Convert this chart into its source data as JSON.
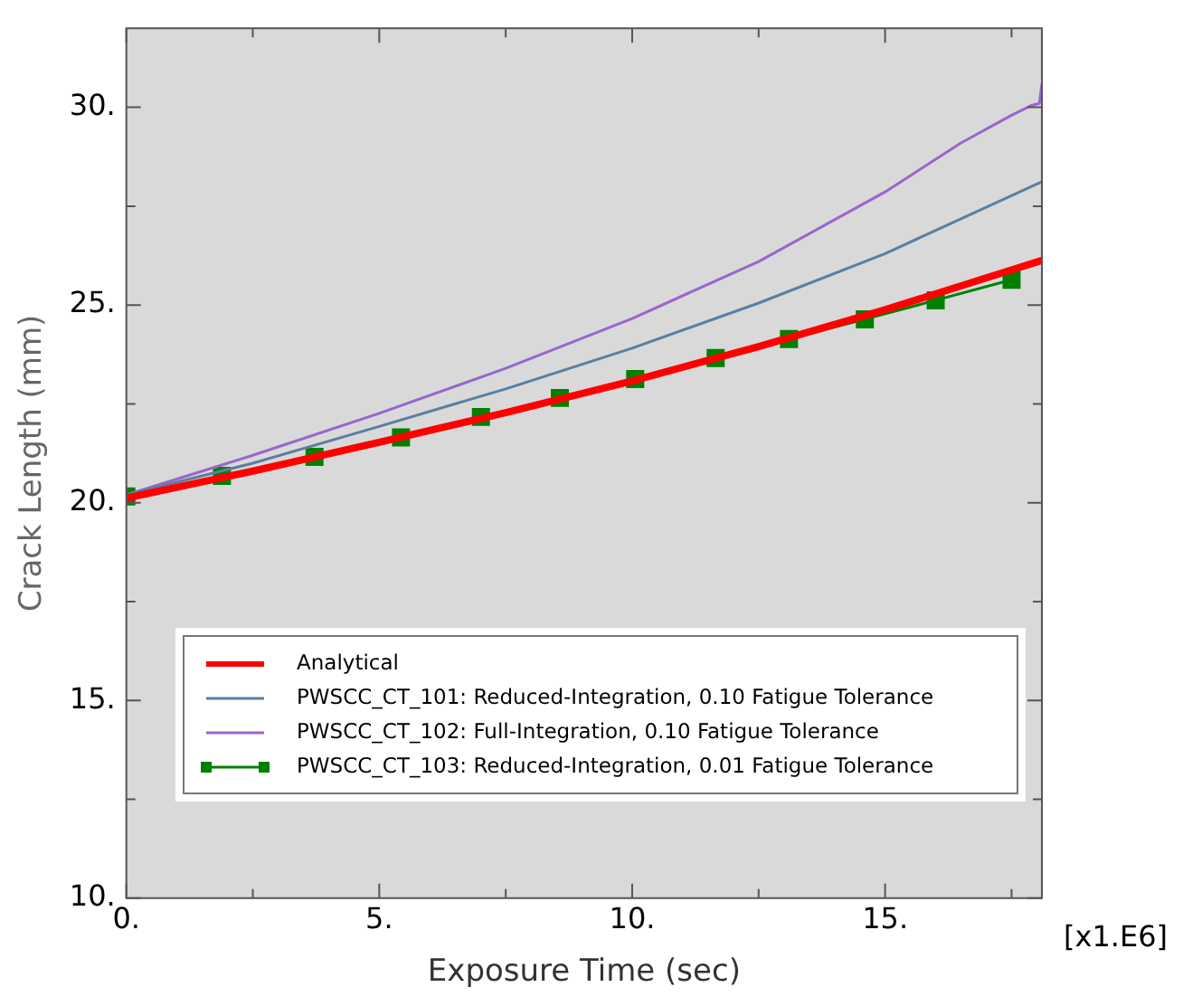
{
  "chart_data": {
    "type": "line",
    "xlabel": "Exposure Time (sec)",
    "ylabel": "Crack Length (mm)",
    "annotations": [
      "[x1.E6]"
    ],
    "xlim": [
      0,
      18.1
    ],
    "xticks": [
      {
        "value": 0,
        "label": "0."
      },
      {
        "value": 2.5,
        "label": null
      },
      {
        "value": 5,
        "label": "5."
      },
      {
        "value": 7.5,
        "label": null
      },
      {
        "value": 10,
        "label": "10."
      },
      {
        "value": 12.5,
        "label": null
      },
      {
        "value": 15,
        "label": "15."
      },
      {
        "value": 17.5,
        "label": null
      }
    ],
    "ylim": [
      10,
      32
    ],
    "yticks": [
      {
        "value": 10,
        "label": "10."
      },
      {
        "value": 12.5,
        "label": null
      },
      {
        "value": 15,
        "label": "15."
      },
      {
        "value": 17.5,
        "label": null
      },
      {
        "value": 20,
        "label": "20."
      },
      {
        "value": 22.5,
        "label": null
      },
      {
        "value": 25,
        "label": "25."
      },
      {
        "value": 27.5,
        "label": null
      },
      {
        "value": 30,
        "label": "30."
      }
    ],
    "legend": "bottom",
    "marker": "none",
    "series": [
      {
        "name": "Analytical",
        "color": "#ff0000",
        "x": [
          0,
          2.5,
          5,
          7.5,
          10,
          12.5,
          15,
          18.1
        ],
        "values": [
          20.12,
          20.8,
          21.53,
          22.28,
          23.08,
          23.95,
          24.88,
          26.13
        ]
      },
      {
        "name": "PWSCC_CT_101: Reduced-Integration, 0.10 Fatigue Tolerance",
        "color": "#5a7fa0",
        "x": [
          0,
          2.5,
          5,
          7.5,
          10,
          12.5,
          15,
          18.1
        ],
        "values": [
          20.2,
          21.0,
          21.93,
          22.88,
          23.91,
          25.05,
          26.3,
          28.12
        ]
      },
      {
        "name": "PWSCC_CT_102: Full-Integration, 0.10 Fatigue Tolerance",
        "color": "#9966cc",
        "x": [
          0,
          2.5,
          5,
          7.5,
          10,
          12.5,
          15,
          16.5,
          17.5,
          17.9,
          18.05,
          18.1
        ],
        "values": [
          20.2,
          21.2,
          22.26,
          23.4,
          24.66,
          26.1,
          27.86,
          29.1,
          29.8,
          30.05,
          30.1,
          30.6
        ]
      },
      {
        "name": "PWSCC_CT_103: Reduced-Integration, 0.01 Fatigue Tolerance",
        "color": "#008000",
        "marker": "square",
        "x": [
          0,
          1.89,
          3.72,
          5.43,
          7.01,
          8.57,
          10.06,
          11.65,
          13.1,
          14.6,
          16.0,
          17.5
        ],
        "values": [
          20.16,
          20.68,
          21.16,
          21.65,
          22.17,
          22.65,
          23.13,
          23.66,
          24.14,
          24.64,
          25.12,
          25.64
        ]
      }
    ]
  }
}
